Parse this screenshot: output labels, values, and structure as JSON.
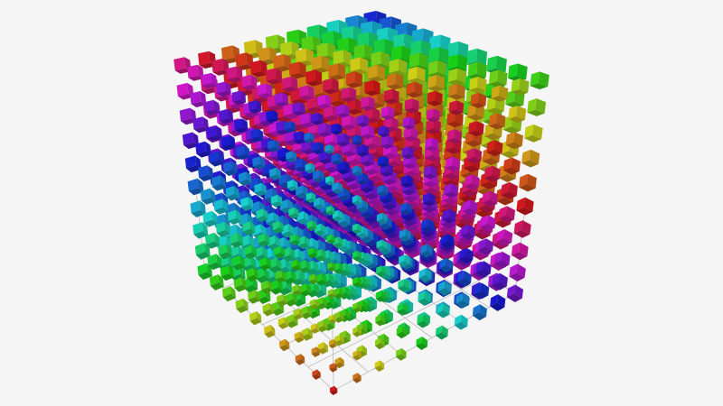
{
  "chart_data": {
    "type": "scatter3D",
    "title": "",
    "xlabel": "",
    "ylabel": "",
    "zlabel": "",
    "grid": true,
    "axis_labels_shown": false,
    "symbol": "cube",
    "x_values": [
      0,
      1,
      2,
      3,
      4,
      5,
      6,
      7,
      8,
      9
    ],
    "y_values": [
      0,
      1,
      2,
      3,
      4,
      5,
      6,
      7,
      8,
      9
    ],
    "z_values": [
      0,
      1,
      2,
      3,
      4,
      5,
      6,
      7,
      8,
      9
    ],
    "color_encoding": "hue",
    "size_encoding": "value",
    "colors": {
      "background": "#f5f5f5",
      "grid": "#bbbbbb"
    }
  }
}
